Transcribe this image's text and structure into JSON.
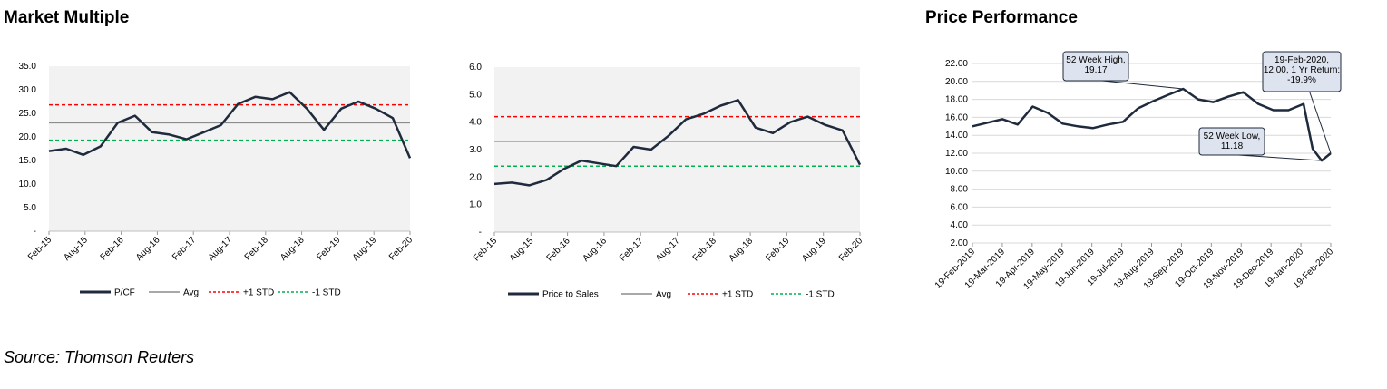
{
  "page": {
    "heading_left": "Market Multiple",
    "heading_right": "Price Performance",
    "source": "Source: Thomson Reuters"
  },
  "colors": {
    "series": "#1f2a3c",
    "avg": "#8c8c8c",
    "plus_std": "#ff0000",
    "minus_std": "#00b050",
    "plot_bg": "#f2f2f2",
    "callout_fill": "#dde3ef",
    "callout_stroke": "#1f2a3c"
  },
  "chart_data": [
    {
      "type": "line",
      "yticks": [
        "35.0",
        "30.0",
        "25.0",
        "20.0",
        "15.0",
        "10.0",
        "5.0",
        "-"
      ],
      "ylim": [
        0,
        35
      ],
      "xticks": [
        "Feb-15",
        "Aug-15",
        "Feb-16",
        "Aug-16",
        "Feb-17",
        "Aug-17",
        "Feb-18",
        "Aug-18",
        "Feb-19",
        "Aug-19",
        "Feb-20"
      ],
      "x": [
        "Feb-15",
        "May-15",
        "Aug-15",
        "Nov-15",
        "Feb-16",
        "May-16",
        "Aug-16",
        "Nov-16",
        "Feb-17",
        "May-17",
        "Aug-17",
        "Nov-17",
        "Feb-18",
        "May-18",
        "Aug-18",
        "Nov-18",
        "Feb-19",
        "May-19",
        "Aug-19",
        "Nov-19",
        "Jan-20",
        "Feb-20"
      ],
      "series": [
        {
          "name": "P/CF",
          "values": [
            17.0,
            17.5,
            16.2,
            18.0,
            23.0,
            24.5,
            21.0,
            20.5,
            19.5,
            21.0,
            22.5,
            27.0,
            28.5,
            28.0,
            29.5,
            26.0,
            21.5,
            26.0,
            27.5,
            26.0,
            24.0,
            15.5
          ]
        },
        {
          "name": "Avg",
          "value": 23.0
        },
        {
          "name": "+1 STD",
          "value": 26.8
        },
        {
          "name": "-1 STD",
          "value": 19.3
        }
      ]
    },
    {
      "type": "line",
      "yticks": [
        "6.0",
        "5.0",
        "4.0",
        "3.0",
        "2.0",
        "1.0",
        "-"
      ],
      "ylim": [
        0,
        6
      ],
      "xticks": [
        "Feb-15",
        "Aug-15",
        "Feb-16",
        "Aug-16",
        "Feb-17",
        "Aug-17",
        "Feb-18",
        "Aug-18",
        "Feb-19",
        "Aug-19",
        "Feb-20"
      ],
      "x": [
        "Feb-15",
        "May-15",
        "Aug-15",
        "Nov-15",
        "Feb-16",
        "May-16",
        "Aug-16",
        "Nov-16",
        "Feb-17",
        "May-17",
        "Aug-17",
        "Nov-17",
        "Feb-18",
        "May-18",
        "Aug-18",
        "Nov-18",
        "Feb-19",
        "May-19",
        "Aug-19",
        "Nov-19",
        "Jan-20",
        "Feb-20"
      ],
      "series": [
        {
          "name": "Price to Sales",
          "values": [
            1.75,
            1.8,
            1.7,
            1.9,
            2.3,
            2.6,
            2.5,
            2.4,
            3.1,
            3.0,
            3.5,
            4.1,
            4.3,
            4.6,
            4.8,
            3.8,
            3.6,
            4.0,
            4.2,
            3.9,
            3.7,
            2.45
          ]
        },
        {
          "name": "Avg",
          "value": 3.3
        },
        {
          "name": "+1 STD",
          "value": 4.2
        },
        {
          "name": "-1 STD",
          "value": 2.4
        }
      ]
    },
    {
      "type": "line",
      "yticks": [
        "22.00",
        "20.00",
        "18.00",
        "16.00",
        "14.00",
        "12.00",
        "10.00",
        "8.00",
        "6.00",
        "4.00",
        "2.00"
      ],
      "ylim": [
        2,
        22
      ],
      "xticks": [
        "19-Feb-2019",
        "19-Mar-2019",
        "19-Apr-2019",
        "19-May-2019",
        "19-Jun-2019",
        "19-Jul-2019",
        "19-Aug-2019",
        "19-Sep-2019",
        "19-Oct-2019",
        "19-Nov-2019",
        "19-Dec-2019",
        "19-Jan-2020",
        "19-Feb-2020"
      ],
      "x": [
        "19-Feb-2019",
        "5-Mar-2019",
        "19-Mar-2019",
        "5-Apr-2019",
        "19-Apr-2019",
        "5-May-2019",
        "19-May-2019",
        "5-Jun-2019",
        "19-Jun-2019",
        "5-Jul-2019",
        "19-Jul-2019",
        "5-Aug-2019",
        "19-Aug-2019",
        "5-Sep-2019",
        "19-Sep-2019",
        "5-Oct-2019",
        "19-Oct-2019",
        "5-Nov-2019",
        "19-Nov-2019",
        "5-Dec-2019",
        "19-Dec-2019",
        "5-Jan-2020",
        "19-Jan-2020",
        "1-Feb-2020",
        "10-Feb-2020",
        "19-Feb-2020"
      ],
      "series": [
        {
          "name": "Price",
          "values": [
            15.0,
            15.4,
            15.8,
            15.2,
            17.2,
            16.5,
            15.3,
            15.0,
            14.8,
            15.2,
            15.5,
            17.0,
            17.8,
            18.5,
            19.17,
            18.0,
            17.7,
            18.3,
            18.8,
            17.5,
            16.8,
            16.8,
            17.5,
            12.5,
            11.18,
            12.0
          ]
        }
      ],
      "annotations": [
        {
          "lines": [
            "52 Week High,",
            "19.17"
          ]
        },
        {
          "lines": [
            "52 Week Low,",
            "11.18"
          ]
        },
        {
          "lines": [
            "19-Feb-2020,",
            "12.00, 1 Yr Return:",
            "-19.9%"
          ]
        }
      ]
    }
  ]
}
